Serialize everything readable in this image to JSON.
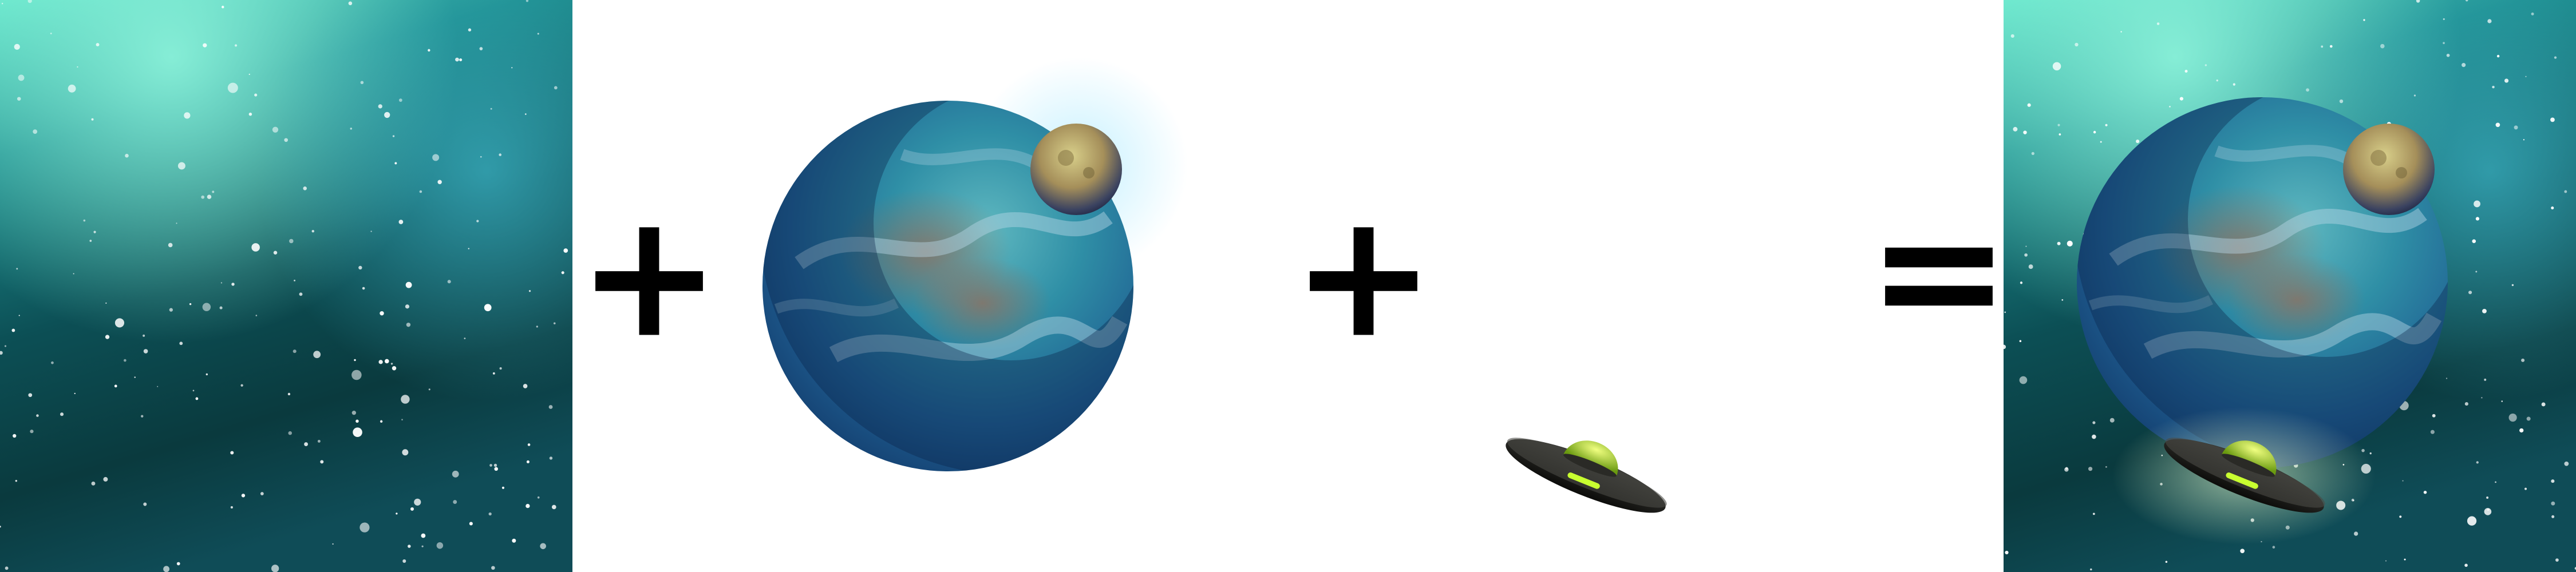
{
  "operators": [
    "+",
    "+",
    "="
  ]
}
